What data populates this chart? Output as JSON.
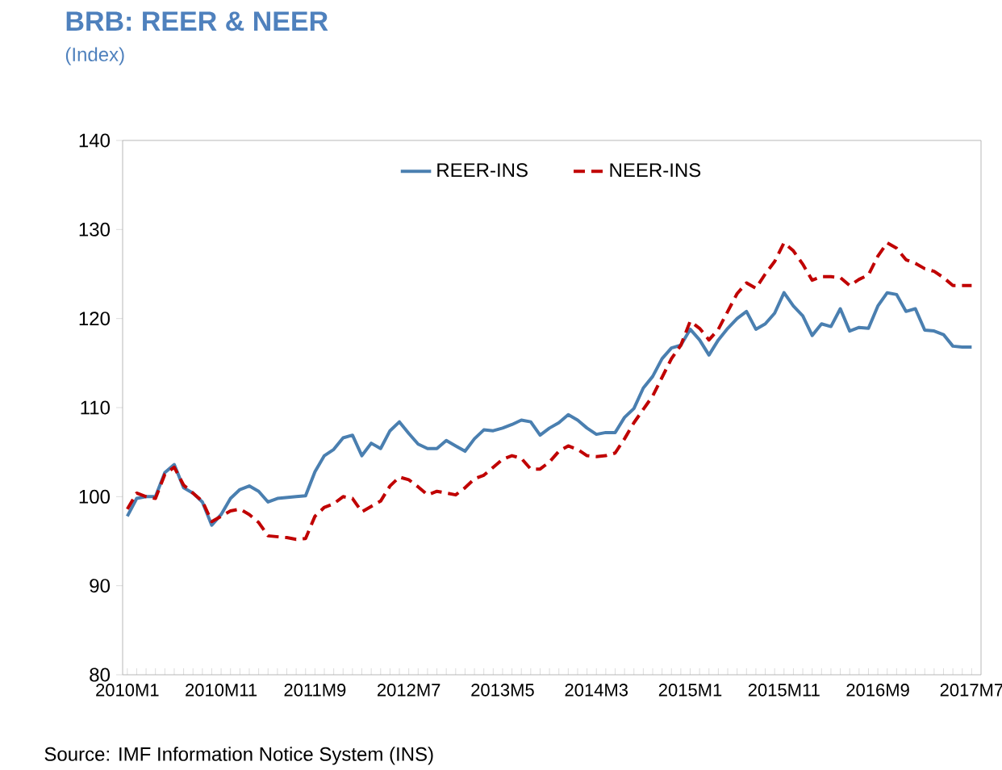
{
  "chart_data": {
    "type": "line",
    "title": "BRB: REER & NEER",
    "subtitle": "(Index)",
    "categories": [
      "2010M1",
      null,
      null,
      null,
      null,
      null,
      null,
      null,
      null,
      null,
      "2010M11",
      null,
      null,
      null,
      null,
      null,
      null,
      null,
      null,
      null,
      "2011M9",
      null,
      null,
      null,
      null,
      null,
      null,
      null,
      null,
      null,
      "2012M7",
      null,
      null,
      null,
      null,
      null,
      null,
      null,
      null,
      null,
      "2013M5",
      null,
      null,
      null,
      null,
      null,
      null,
      null,
      null,
      null,
      "2014M3",
      null,
      null,
      null,
      null,
      null,
      null,
      null,
      null,
      null,
      "2015M1",
      null,
      null,
      null,
      null,
      null,
      null,
      null,
      null,
      null,
      "2015M11",
      null,
      null,
      null,
      null,
      null,
      null,
      null,
      null,
      null,
      "2016M9",
      null,
      null,
      null,
      null,
      null,
      null,
      null,
      null,
      null,
      "2017M7"
    ],
    "series": [
      {
        "name": "REER-INS",
        "color": "#4a7fb0",
        "line_style": "solid",
        "values": [
          97.8,
          99.8,
          100,
          100,
          102.7,
          103.6,
          101,
          100.4,
          99.4,
          96.8,
          98,
          99.8,
          100.8,
          101.2,
          100.6,
          99.4,
          99.8,
          99.9,
          100,
          100.1,
          102.8,
          104.6,
          105.3,
          106.6,
          106.9,
          104.6,
          106,
          105.4,
          107.4,
          108.4,
          107.1,
          105.9,
          105.4,
          105.4,
          106.3,
          105.7,
          105.1,
          106.5,
          107.5,
          107.4,
          107.7,
          108.1,
          108.6,
          108.4,
          106.9,
          107.7,
          108.3,
          109.2,
          108.6,
          107.7,
          107,
          107.2,
          107.2,
          108.9,
          109.9,
          112.2,
          113.5,
          115.5,
          116.7,
          117,
          118.8,
          117.6,
          115.9,
          117.6,
          118.9,
          120,
          120.8,
          118.8,
          119.4,
          120.6,
          122.9,
          121.4,
          120.3,
          118.1,
          119.4,
          119.1,
          121.1,
          118.6,
          119,
          118.9,
          121.4,
          122.9,
          122.7,
          120.8,
          121.1,
          118.7,
          118.6,
          118.2,
          116.9,
          116.8,
          116.8
        ]
      },
      {
        "name": "NEER-INS",
        "color": "#c00000",
        "line_style": "dashed",
        "values": [
          98.6,
          100.4,
          100,
          99.8,
          102.5,
          103.3,
          101.3,
          100.4,
          99.5,
          97.2,
          97.8,
          98.4,
          98.6,
          98,
          97.1,
          95.6,
          95.5,
          95.4,
          95.2,
          95.3,
          97.8,
          98.8,
          99.2,
          100,
          99.8,
          98.3,
          98.9,
          99.5,
          101.2,
          102.2,
          101.9,
          101.1,
          100.2,
          100.6,
          100.4,
          100.2,
          101,
          102,
          102.4,
          103.3,
          104.2,
          104.6,
          104.3,
          103.1,
          103.1,
          103.9,
          105.1,
          105.7,
          105.3,
          104.6,
          104.5,
          104.6,
          104.9,
          106.5,
          108.3,
          109.8,
          111.3,
          113.4,
          115.5,
          117,
          119.7,
          118.9,
          117.6,
          118.8,
          120.8,
          122.8,
          124,
          123.4,
          125,
          126.4,
          128.5,
          127.6,
          126.1,
          124.3,
          124.7,
          124.7,
          124.6,
          123.7,
          124.4,
          124.9,
          127,
          128.5,
          127.9,
          126.6,
          126.2,
          125.6,
          125.3,
          124.6,
          123.7,
          123.7,
          123.7
        ]
      }
    ],
    "ylim": [
      80,
      140
    ],
    "yticks": [
      80,
      90,
      100,
      110,
      120,
      130,
      140
    ],
    "legend": "top",
    "marker": "none",
    "grid": false,
    "annotations": [
      "Source: IMF Information Notice System (INS)"
    ]
  }
}
